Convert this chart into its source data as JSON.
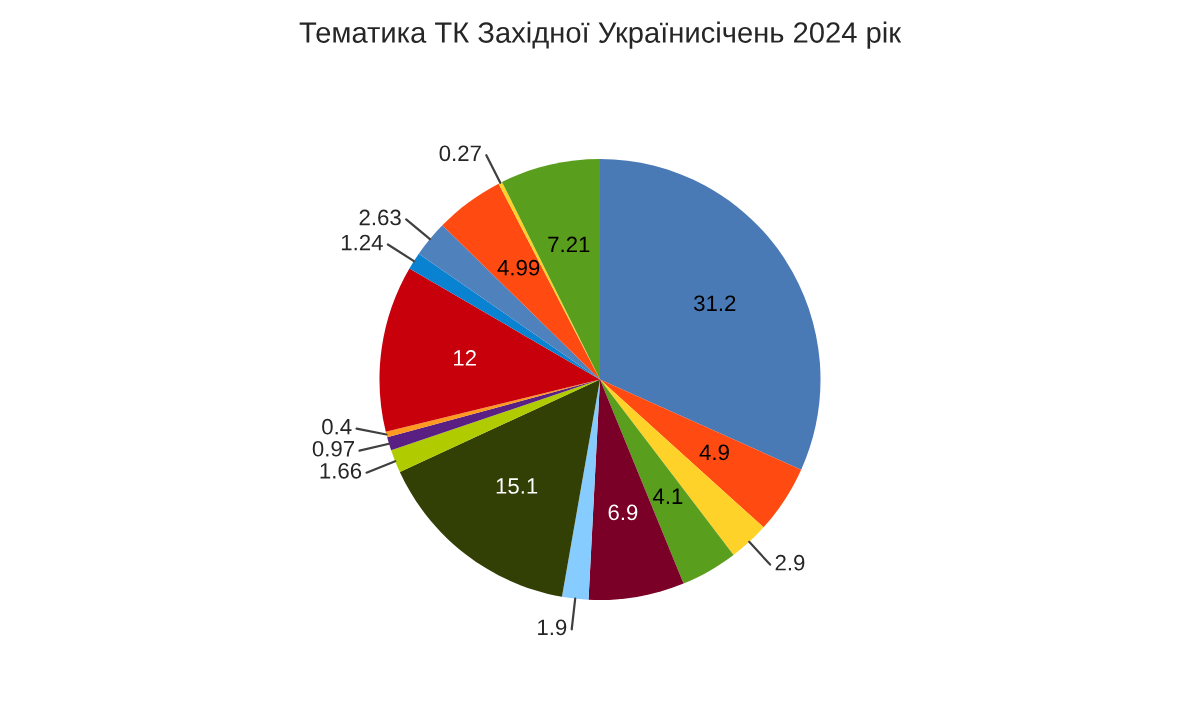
{
  "chart_data": {
    "type": "pie",
    "title": "Тематика ТК Західної Україниcічень 2024 рік",
    "categories": [
      null,
      null,
      null,
      null,
      null,
      null,
      null,
      null,
      null,
      null,
      null,
      null,
      null,
      null,
      null,
      null
    ],
    "values": [
      31.2,
      4.9,
      2.9,
      4.1,
      6.9,
      1.9,
      15.1,
      1.66,
      0.97,
      0.4,
      12,
      1.24,
      2.63,
      4.99,
      0.27,
      7.21
    ],
    "colors": [
      "#4a7ab5",
      "#ff4b12",
      "#ffd22a",
      "#5a9e1e",
      "#7a0028",
      "#86ccff",
      "#323f05",
      "#b0cc00",
      "#5a1f82",
      "#ff9a20",
      "#c8000c",
      "#0a82d2",
      "#4f81bd",
      "#ff4b12",
      "#ffd22a",
      "#5a9e1e"
    ],
    "data_labels": true
  }
}
